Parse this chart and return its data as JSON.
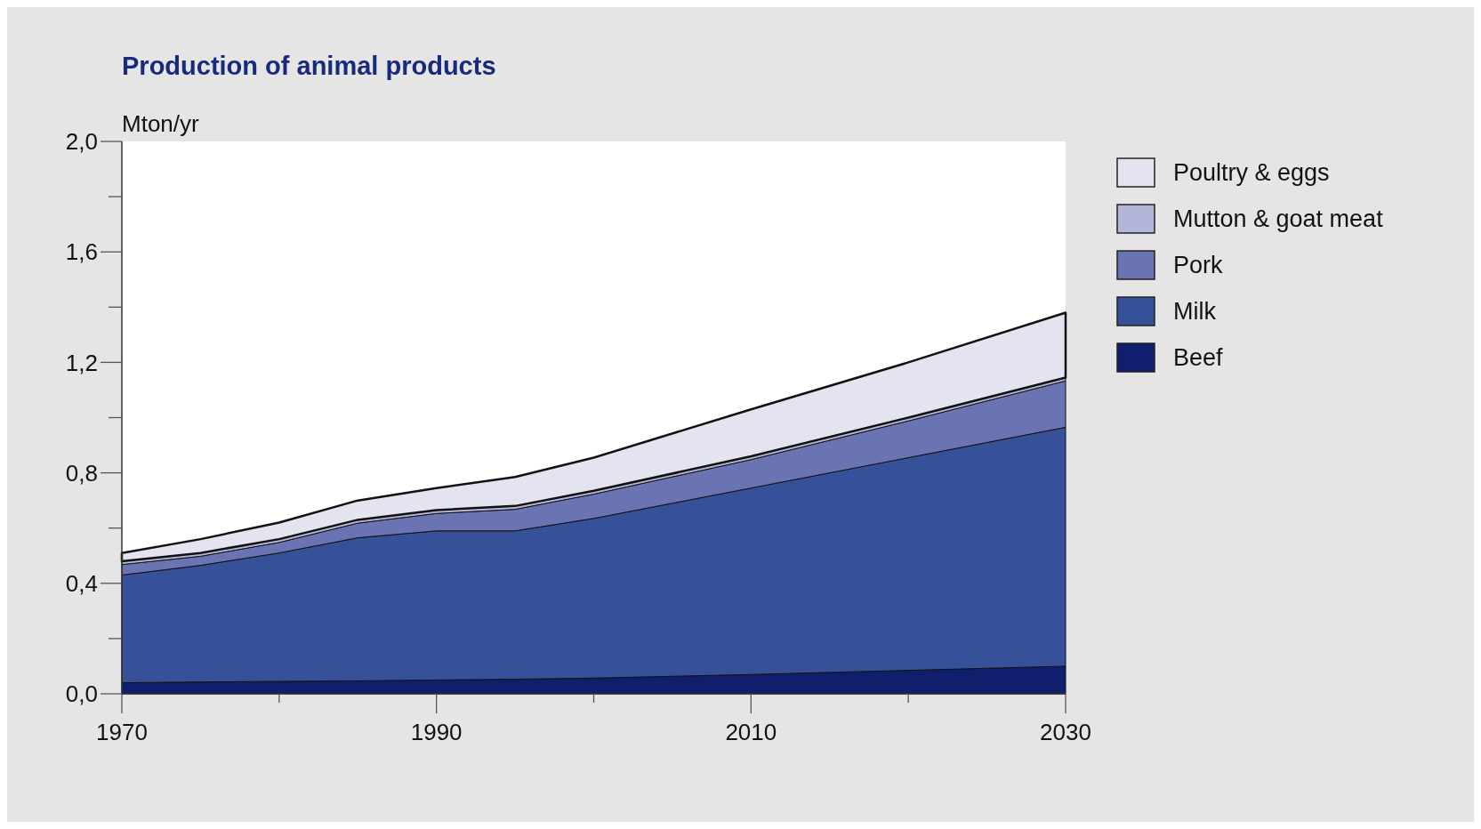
{
  "chart_data": {
    "type": "area",
    "stacked": true,
    "title": "Production of animal products",
    "ylabel": "Mton/yr",
    "x": [
      1970,
      1975,
      1980,
      1985,
      1990,
      1995,
      2000,
      2010,
      2020,
      2030
    ],
    "series": [
      {
        "name": "Beef",
        "color": "#0f1f6e",
        "values": [
          0.04,
          0.043,
          0.045,
          0.047,
          0.05,
          0.053,
          0.057,
          0.07,
          0.085,
          0.1
        ]
      },
      {
        "name": "Milk",
        "color": "#37509a",
        "values": [
          0.39,
          0.422,
          0.465,
          0.518,
          0.54,
          0.537,
          0.578,
          0.675,
          0.77,
          0.865
        ]
      },
      {
        "name": "Pork",
        "color": "#6b74b3",
        "values": [
          0.038,
          0.033,
          0.038,
          0.053,
          0.063,
          0.078,
          0.088,
          0.103,
          0.133,
          0.168
        ]
      },
      {
        "name": "Mutton & goat meat",
        "color": "#b3b6d9",
        "values": [
          0.012,
          0.012,
          0.012,
          0.012,
          0.012,
          0.012,
          0.012,
          0.012,
          0.012,
          0.012
        ]
      },
      {
        "name": "Poultry & eggs",
        "color": "#e4e4f0",
        "values": [
          0.03,
          0.05,
          0.06,
          0.07,
          0.08,
          0.105,
          0.12,
          0.17,
          0.2,
          0.235
        ]
      }
    ],
    "xlim": [
      1970,
      2030
    ],
    "xticks": [
      1970,
      {
        "value": 1980,
        "label": null
      },
      1990,
      {
        "value": 2000,
        "label": null
      },
      2010,
      {
        "value": 2020,
        "label": null
      },
      2030
    ],
    "ylim": [
      0,
      2.0
    ],
    "yticks": [
      {
        "value": 0,
        "label": "0,0"
      },
      {
        "value": 0.2,
        "label": null
      },
      {
        "value": 0.4,
        "label": "0,4"
      },
      {
        "value": 0.6,
        "label": null
      },
      {
        "value": 0.8,
        "label": "0,8"
      },
      {
        "value": 1.0,
        "label": null
      },
      {
        "value": 1.2,
        "label": "1,2"
      },
      {
        "value": 1.4,
        "label": null
      },
      {
        "value": 1.6,
        "label": "1,6"
      },
      {
        "value": 1.8,
        "label": null
      },
      {
        "value": 2.0,
        "label": "2,0"
      }
    ],
    "legend": "right"
  }
}
